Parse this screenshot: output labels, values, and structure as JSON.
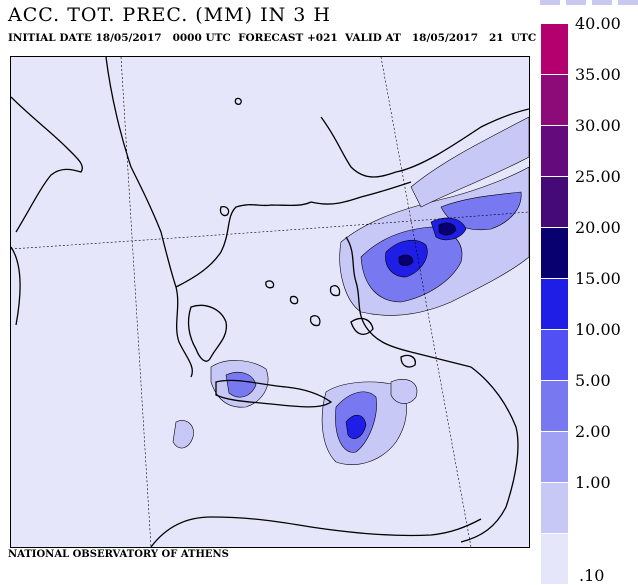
{
  "header": {
    "title": "ACC. TOT. PREC. (MM) IN 3 H",
    "subtitle": "INITIAL DATE 18/05/2017   0000 UTC  FORECAST +021  VALID AT   18/05/2017   21  UTC"
  },
  "footer": {
    "credit": "NATIONAL OBSERVATORY OF ATHENS"
  },
  "legend": {
    "levels": [
      {
        "label": "40.00",
        "color": "#b4006e"
      },
      {
        "label": "35.00",
        "color": "#8c0b78"
      },
      {
        "label": "30.00",
        "color": "#640a7c"
      },
      {
        "label": "25.00",
        "color": "#460a78"
      },
      {
        "label": "20.00",
        "color": "#08006e"
      },
      {
        "label": "15.00",
        "color": "#1e1ee6"
      },
      {
        "label": "10.00",
        "color": "#5050f5"
      },
      {
        "label": "5.00",
        "color": "#7878f0"
      },
      {
        "label": "2.00",
        "color": "#a0a0f5"
      },
      {
        "label": "1.00",
        "color": "#c8c8f7"
      },
      {
        "label": ".10",
        "color": "#e6e6fb"
      }
    ]
  },
  "map": {
    "background_color": "#e6e6fb",
    "coastline_color": "#000000"
  }
}
